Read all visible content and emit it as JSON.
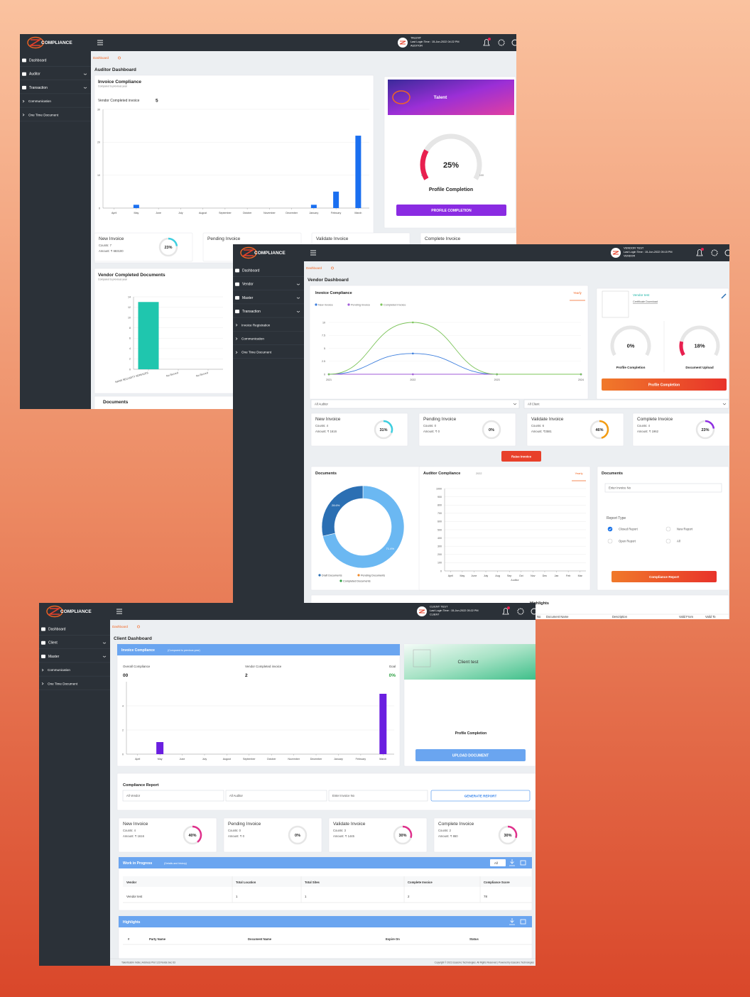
{
  "screens": [
    {
      "logo": "COMPLIANCE",
      "user": {
        "name": "TALENT",
        "login": "Last Login Time : 15-Jun-2022 04:22 PM",
        "role": "AUDITOR"
      },
      "menu": [
        "Dashboard",
        "Auditor",
        "Transaction",
        "Communication",
        "One Time Document"
      ],
      "breadcrumb": "Dashboard",
      "heading": "Auditor Dashboard",
      "invoice_chart": {
        "type": "bar",
        "title": "Invoice Compliance",
        "subtitle": "Compared to previous year",
        "note_label": "Vendor Completed invoice",
        "note_value": 5,
        "color": "#1a6ff0",
        "categories": [
          "April",
          "May",
          "June",
          "July",
          "August",
          "September",
          "October",
          "November",
          "December",
          "January",
          "February",
          "March"
        ],
        "values": [
          0,
          1,
          0,
          0,
          0,
          0,
          0,
          0,
          0,
          1,
          5,
          22
        ],
        "ylim": [
          0,
          30
        ],
        "yticks": [
          0,
          10,
          20,
          30
        ]
      },
      "profile": {
        "banner": "Talent",
        "gauge": {
          "value": 25,
          "label": "25%",
          "color": "#e8204f"
        },
        "scale": [
          0,
          100
        ],
        "caption": "Profile Completion",
        "button": "PROFILE COMPLETION"
      },
      "stats": [
        {
          "title": "New Invoice",
          "counts": "Counts: 7",
          "amount": "Amount: ₹ 683100",
          "gauge": {
            "value": 23,
            "label": "23%",
            "color": "#3ccfe0"
          }
        },
        {
          "title": "Pending Invoice"
        },
        {
          "title": "Validate Invoice"
        },
        {
          "title": "Complete Invoice"
        }
      ],
      "docs_chart": {
        "type": "bar",
        "title": "Vendor Completed Documents",
        "subtitle": "Compared to previous year",
        "color": "#1fc6ae",
        "categories": [
          "NANS SECURITY SERVICES",
          "No Record",
          "No Record"
        ],
        "values": [
          13,
          0,
          0
        ],
        "ylim": [
          0,
          14
        ],
        "yticks": [
          0,
          2,
          4,
          6,
          8,
          10,
          12,
          14
        ]
      },
      "documents_title": "Documents"
    },
    {
      "logo": "COMPLIANCE",
      "user": {
        "name": "VENDOR TEST",
        "login": "Last Login Time : 15-Jun-2022 05:15 PM",
        "role": "VENDOR"
      },
      "menu": [
        "Dashboard",
        "Vendor",
        "Master",
        "Transaction",
        "Invoice Registration",
        "Communication",
        "One Time Document"
      ],
      "breadcrumb": "Dashboard",
      "heading": "Vendor Dashboard",
      "invoice_chart": {
        "type": "line",
        "title": "Invoice Compliance",
        "toggle": "Yearly",
        "x": [
          2021,
          2022,
          2023,
          2024
        ],
        "series": [
          {
            "name": "New Invoice",
            "color": "#3b7ddd",
            "values": [
              0,
              4,
              0,
              0
            ]
          },
          {
            "name": "Pending Invoice",
            "color": "#a15bd8",
            "values": [
              0,
              0,
              0,
              0
            ]
          },
          {
            "name": "Completed Invoice",
            "color": "#7cc45a",
            "values": [
              0,
              10,
              0,
              0
            ]
          }
        ],
        "xlim": [
          2021,
          2024
        ],
        "xticks": [
          2021,
          2022,
          2023,
          2024
        ],
        "ylim": [
          0,
          10
        ],
        "yticks": [
          0,
          2.5,
          5,
          7.5,
          10
        ]
      },
      "vendor": {
        "name": "Vendor test",
        "link": "Certificate Download",
        "gauges": [
          {
            "value": 0,
            "label": "0%",
            "color": "#e8204f",
            "caption": "Profile Completion"
          },
          {
            "value": 18,
            "label": "18%",
            "color": "#e8204f",
            "caption": "Document Upload"
          }
        ],
        "button": "Profile Completion"
      },
      "filters": [
        "All Auditor",
        "All Client"
      ],
      "stats": [
        {
          "title": "New Invoice",
          "counts": "Counts: 4",
          "amount": "Amount: ₹ 1616",
          "gauge": {
            "value": 31,
            "label": "31%",
            "color": "#3ccfe0"
          }
        },
        {
          "title": "Pending Invoice",
          "counts": "Counts: 0",
          "amount": "Amount: ₹ 0",
          "gauge": {
            "value": 0,
            "label": "0%",
            "color": "#e8204f"
          }
        },
        {
          "title": "Validate Invoice",
          "counts": "Counts: 6",
          "amount": "Amount: ₹3581",
          "gauge": {
            "value": 46,
            "label": "46%",
            "color": "#f39c12"
          }
        },
        {
          "title": "Complete Invoice",
          "counts": "Counts: 4",
          "amount": "Amount: ₹ 1962",
          "gauge": {
            "value": 23,
            "label": "23%",
            "color": "#8e2de2"
          }
        }
      ],
      "raise_button": "Raise Invoice",
      "donut": {
        "type": "pie",
        "title": "Documents",
        "values": [
          71.4,
          28.6
        ],
        "value_labels": [
          "71.4%",
          "28.6%"
        ],
        "colors": [
          "#6bb8f2",
          "#2b6fb3"
        ],
        "legend": [
          {
            "name": "Draft Documents",
            "color": "#2b6fb3"
          },
          {
            "name": "Pending Documents",
            "color": "#f0892a"
          },
          {
            "name": "Completed Documents",
            "color": "#2ea043"
          }
        ]
      },
      "auditor_chart": {
        "type": "bar",
        "title": "Auditor Compliance",
        "year": "2022",
        "toggle": "Yearly",
        "xlabel": "Auditor",
        "categories": [
          "April",
          "May",
          "June",
          "July",
          "Aug",
          "Sep",
          "Oct",
          "Nov",
          "Dec",
          "Jan",
          "Feb",
          "Mar"
        ],
        "ylim": [
          0,
          1000
        ],
        "yticks": [
          0,
          100,
          200,
          300,
          400,
          500,
          600,
          700,
          800,
          900,
          1000
        ]
      },
      "report": {
        "title": "Documents",
        "placeholder": "Enter Invoice No",
        "label": "Report Type",
        "options": [
          {
            "label": "Closed Report",
            "checked": true
          },
          {
            "label": "New Report",
            "checked": false
          },
          {
            "label": "Open Report",
            "checked": false
          },
          {
            "label": "All",
            "checked": false
          }
        ],
        "button": "Compliance Report"
      },
      "highlights": {
        "title": "Highlights",
        "columns": [
          "No",
          "Document Name",
          "Description",
          "Valid From",
          "Valid To"
        ]
      }
    },
    {
      "logo": "COMPLIANCE",
      "user": {
        "name": "CLIENT TEST",
        "login": "Last Login Time : 15-Jun-2022 05:22 PM",
        "role": "CLIENT"
      },
      "menu": [
        "Dashboard",
        "Client",
        "Master",
        "Communication",
        "One Time Document"
      ],
      "breadcrumb": "Dashboard",
      "heading": "Client Dashboard",
      "invoice_chart": {
        "type": "bar",
        "title": "Invoice Compliance",
        "subtitle": "(Compared to previous year)",
        "metrics": [
          {
            "label": "Overall Compliance",
            "value": "00"
          },
          {
            "label": "Vendor Completed invoice",
            "value": "2"
          },
          {
            "label": "Goal",
            "value": "0%"
          }
        ],
        "color": "#6a1fe0",
        "categories": [
          "April",
          "May",
          "June",
          "July",
          "August",
          "September",
          "October",
          "November",
          "December",
          "January",
          "February",
          "March"
        ],
        "values": [
          0,
          1,
          0,
          0,
          0,
          0,
          0,
          0,
          0,
          0,
          0,
          5
        ],
        "ylim": [
          0,
          6
        ],
        "yticks": [
          0,
          2,
          4
        ]
      },
      "profile": {
        "banner": "Client test",
        "caption": "Profile Completion",
        "button": "UPLOAD DOCUMENT"
      },
      "report": {
        "title": "Compliance Report",
        "fields": [
          "All Vendor",
          "All Auditor",
          "Enter Invoice No"
        ],
        "button": "GENERATE REPORT"
      },
      "stats": [
        {
          "title": "New Invoice",
          "counts": "Counts: 4",
          "amount": "Amount: ₹ 1616",
          "gauge": {
            "value": 40,
            "label": "40%",
            "color": "#e0308c"
          }
        },
        {
          "title": "Pending Invoice",
          "counts": "Counts: 0",
          "amount": "Amount: ₹ 0",
          "gauge": {
            "value": 0,
            "label": "0%",
            "color": "#e0308c"
          }
        },
        {
          "title": "Validate Invoice",
          "counts": "Counts: 3",
          "amount": "Amount: ₹ 1445",
          "gauge": {
            "value": 30,
            "label": "30%",
            "color": "#e0308c"
          }
        },
        {
          "title": "Complete Invoice",
          "counts": "Counts: 2",
          "amount": "Amount: ₹ 860",
          "gauge": {
            "value": 30,
            "label": "30%",
            "color": "#e0308c"
          }
        }
      ],
      "wip": {
        "title": "Work in Progress",
        "subtitle": "(Details and history)",
        "filter": "All",
        "columns": [
          "Vendor",
          "Total Location",
          "Total Sites",
          "Complete Invoice",
          "Compliance Score"
        ],
        "rows": [
          [
            "Vendor test",
            "1",
            "1",
            "2",
            "78"
          ]
        ]
      },
      "highlights": {
        "title": "Highlights",
        "columns": [
          "#",
          "Party Name",
          "Document Name",
          "Expire On",
          "Status"
        ]
      },
      "footer": {
        "left": "Talenticabin India | Address Plot 123 Noida Sec 63",
        "right": "Copyright © 2021 Esasoinc Technologies. All Rights Reserved | Powered by Esasoinc Technologies"
      }
    }
  ]
}
